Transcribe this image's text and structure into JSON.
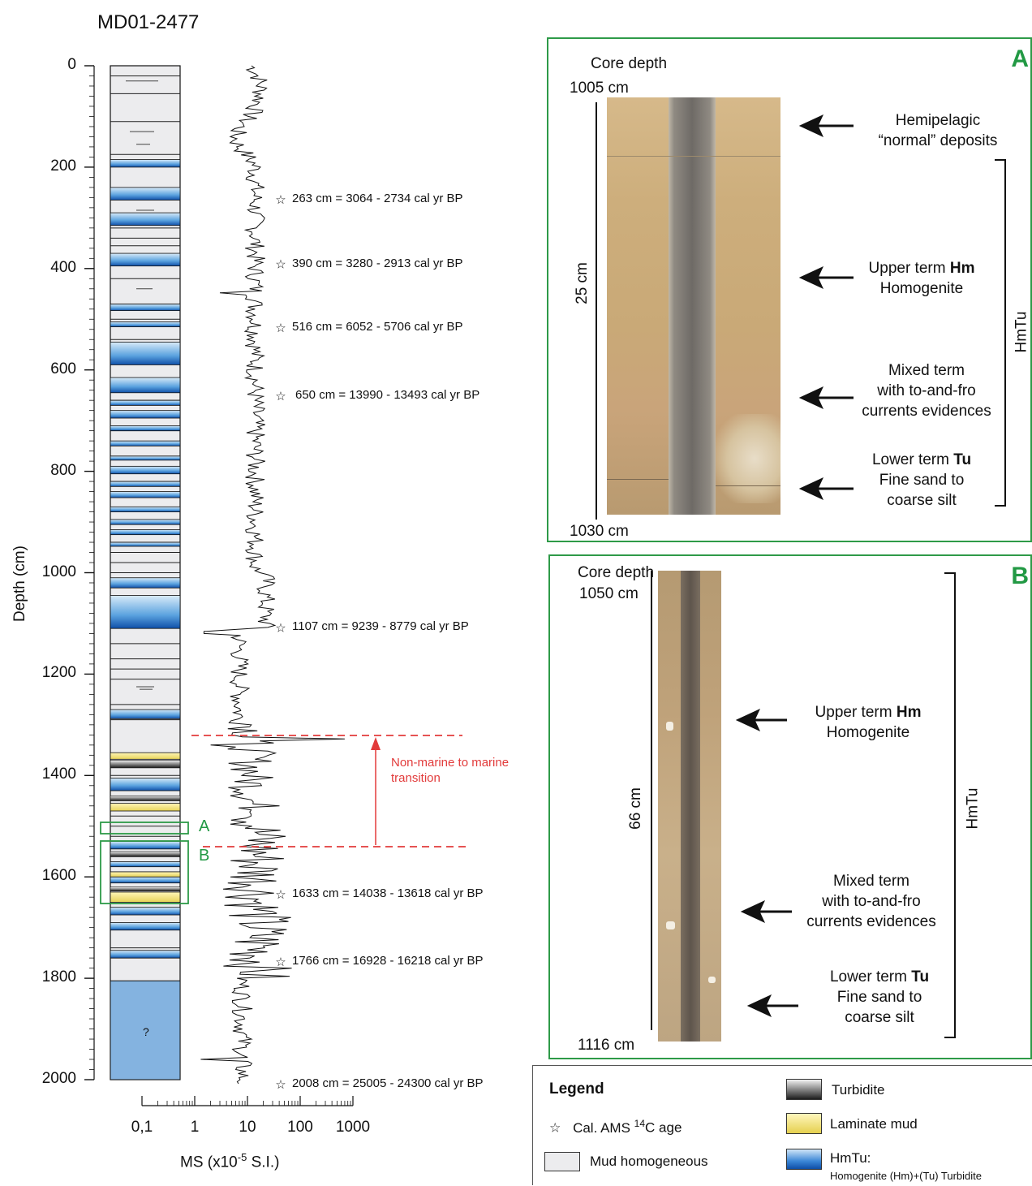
{
  "core_id": "MD01-2477",
  "depth_axis": {
    "label": "Depth (cm)",
    "ticks": [
      "0",
      "200",
      "400",
      "600",
      "800",
      "1000",
      "1200",
      "1400",
      "1600",
      "1800",
      "2000"
    ]
  },
  "ms_axis": {
    "label_main": "MS (x10",
    "label_sup": "-5",
    "label_end": " S.I.)",
    "ticks": [
      "0,1",
      "1",
      "10",
      "100",
      "1000"
    ]
  },
  "column_unknown": "?",
  "box_labels": {
    "a": "A",
    "b": "B"
  },
  "ages": [
    {
      "depth": 263,
      "text": "263 cm = 3064 - 2734  cal yr BP"
    },
    {
      "depth": 390,
      "text": "390 cm = 3280 - 2913 cal yr BP"
    },
    {
      "depth": 516,
      "text": "516 cm = 6052 - 5706 cal yr BP"
    },
    {
      "depth": 650,
      "text": "650 cm = 13990 - 13493 cal yr BP"
    },
    {
      "depth": 1107,
      "text": "1107 cm = 9239 - 8779 cal yr BP"
    },
    {
      "depth": 1633,
      "text": "1633 cm = 14038 - 13618 cal yr BP"
    },
    {
      "depth": 1766,
      "text": "1766 cm = 16928 - 16218 cal yr BP"
    },
    {
      "depth": 2008,
      "text": "2008 cm = 25005 - 24300 cal yr BP"
    }
  ],
  "transition": {
    "line1": "Non-marine to marine",
    "line2": "transition"
  },
  "panel_a": {
    "letter": "A",
    "core_depth": "Core depth",
    "top": "1005 cm",
    "bottom": "1030 cm",
    "length": "25 cm",
    "side": "HmTu",
    "hemi1": "Hemipelagic",
    "hemi2": "“normal” deposits",
    "upper_pre": "Upper term ",
    "upper_bold": "Hm",
    "upper2": "Homogenite",
    "mixed1": "Mixed term",
    "mixed2": "with to-and-fro",
    "mixed3": "currents evidences",
    "lower_pre": "Lower term ",
    "lower_bold": "Tu",
    "lower2": "Fine sand to",
    "lower3": "coarse silt"
  },
  "panel_b": {
    "letter": "B",
    "core_depth": "Core depth",
    "top": "1050 cm",
    "bottom": "1116 cm",
    "length": "66 cm",
    "side": "HmTu",
    "upper_pre": "Upper term ",
    "upper_bold": "Hm",
    "upper2": "Homogenite",
    "mixed1": "Mixed term",
    "mixed2": "with to-and-fro",
    "mixed3": "currents evidences",
    "lower_pre": "Lower term ",
    "lower_bold": "Tu",
    "lower2": "Fine sand to",
    "lower3": "coarse silt"
  },
  "legend": {
    "title": "Legend",
    "age_pre": "Cal. AMS ",
    "age_sup": "14",
    "age_post": "C age",
    "mud": "Mud homogeneous",
    "turbidite": "Turbidite",
    "laminate": "Laminate mud",
    "hmtu": "HmTu:",
    "hmtu_detail": "Homogenite (Hm)+(Tu) Turbidite"
  },
  "colors": {
    "panel_border": "#2e9a48",
    "hmtu": "#3b86d6",
    "laminate": "#f0e27a",
    "mud": "#ececee",
    "transition": "#e23b3b"
  }
}
